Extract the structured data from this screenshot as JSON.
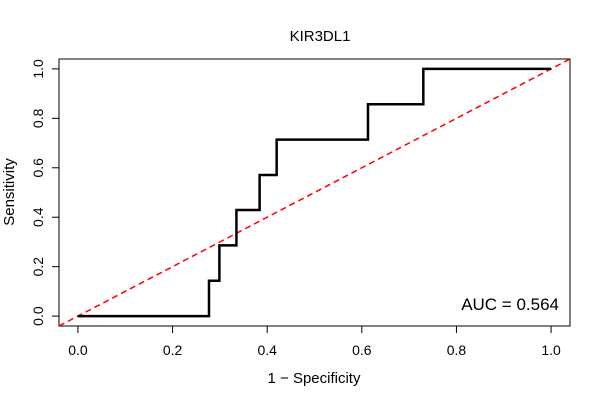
{
  "chart_data": {
    "type": "line",
    "title": "KIR3DL1",
    "xlabel": "1 − Specificity",
    "ylabel": "Sensitivity",
    "xlim": [
      -0.04,
      1.04
    ],
    "ylim": [
      -0.04,
      1.04
    ],
    "xticks": [
      0.0,
      0.2,
      0.4,
      0.6,
      0.8,
      1.0
    ],
    "yticks": [
      0.0,
      0.2,
      0.4,
      0.6,
      0.8,
      1.0
    ],
    "xtick_labels": [
      "0.0",
      "0.2",
      "0.4",
      "0.6",
      "0.8",
      "1.0"
    ],
    "ytick_labels": [
      "0.0",
      "0.2",
      "0.4",
      "0.6",
      "0.8",
      "1.0"
    ],
    "grid": false,
    "series": [
      {
        "color": "#000000",
        "style": "solid",
        "x": [
          0.0,
          0.277,
          0.277,
          0.299,
          0.299,
          0.335,
          0.335,
          0.384,
          0.384,
          0.42,
          0.42,
          0.613,
          0.613,
          0.73,
          0.73,
          1.0
        ],
        "y": [
          0.0,
          0.0,
          0.143,
          0.143,
          0.286,
          0.286,
          0.429,
          0.429,
          0.571,
          0.571,
          0.714,
          0.714,
          0.857,
          0.857,
          1.0,
          1.0
        ]
      },
      {
        "color": "#ff0000",
        "style": "dashed",
        "x": [
          -0.04,
          1.04
        ],
        "y": [
          -0.04,
          1.04
        ]
      }
    ],
    "annotation": "AUC = 0.564"
  }
}
